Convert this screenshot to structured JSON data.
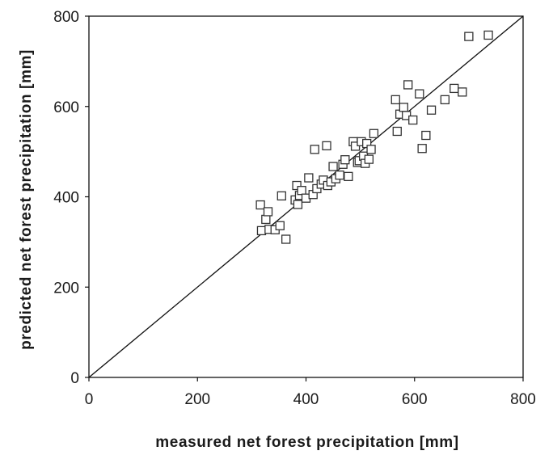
{
  "chart_data": {
    "type": "scatter",
    "title": "",
    "xlabel": "measured net forest precipitation [mm]",
    "ylabel": "predicted net forest precipitation [mm]",
    "xlim": [
      0,
      800
    ],
    "ylim": [
      0,
      800
    ],
    "xticks": [
      "0",
      "200",
      "400",
      "600",
      "800"
    ],
    "yticks": [
      "0",
      "200",
      "400",
      "600",
      "800"
    ],
    "grid": false,
    "legend": "none",
    "marker": "open-square",
    "reference_line": {
      "type": "1:1",
      "from": [
        0,
        0
      ],
      "to": [
        800,
        800
      ]
    },
    "colors": {
      "marker": "#333333",
      "line": "#111111",
      "axis": "#111111"
    },
    "series": [
      {
        "points": [
          [
            316,
            382
          ],
          [
            318,
            325
          ],
          [
            326,
            350
          ],
          [
            330,
            367
          ],
          [
            332,
            328
          ],
          [
            343,
            327
          ],
          [
            352,
            336
          ],
          [
            355,
            402
          ],
          [
            363,
            306
          ],
          [
            380,
            393
          ],
          [
            383,
            425
          ],
          [
            385,
            383
          ],
          [
            388,
            403
          ],
          [
            392,
            414
          ],
          [
            400,
            397
          ],
          [
            405,
            442
          ],
          [
            413,
            405
          ],
          [
            416,
            505
          ],
          [
            420,
            418
          ],
          [
            428,
            428
          ],
          [
            432,
            437
          ],
          [
            438,
            513
          ],
          [
            440,
            425
          ],
          [
            446,
            433
          ],
          [
            450,
            467
          ],
          [
            455,
            440
          ],
          [
            462,
            448
          ],
          [
            468,
            472
          ],
          [
            472,
            482
          ],
          [
            478,
            445
          ],
          [
            487,
            522
          ],
          [
            491,
            512
          ],
          [
            495,
            476
          ],
          [
            498,
            480
          ],
          [
            502,
            522
          ],
          [
            506,
            490
          ],
          [
            509,
            474
          ],
          [
            512,
            518
          ],
          [
            516,
            483
          ],
          [
            520,
            505
          ],
          [
            525,
            540
          ],
          [
            565,
            615
          ],
          [
            568,
            545
          ],
          [
            573,
            583
          ],
          [
            580,
            598
          ],
          [
            585,
            580
          ],
          [
            588,
            648
          ],
          [
            597,
            570
          ],
          [
            609,
            628
          ],
          [
            614,
            507
          ],
          [
            621,
            536
          ],
          [
            631,
            592
          ],
          [
            656,
            615
          ],
          [
            673,
            640
          ],
          [
            688,
            632
          ],
          [
            700,
            755
          ],
          [
            736,
            758
          ]
        ]
      }
    ]
  }
}
